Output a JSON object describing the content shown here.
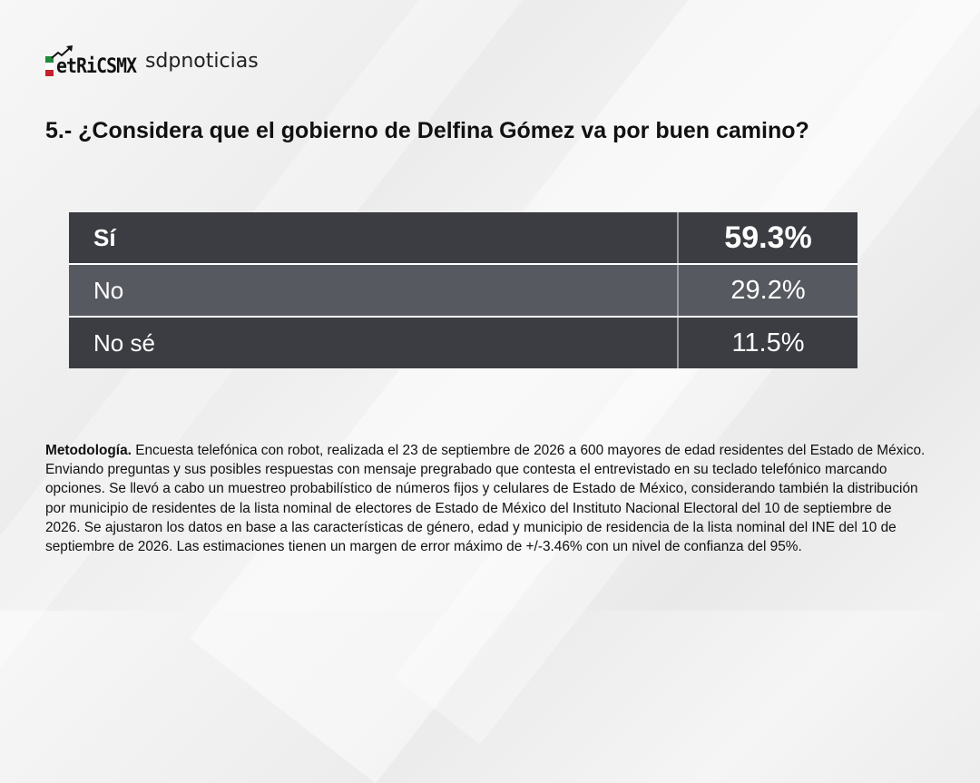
{
  "brand": {
    "logo_metrics": "MetricsMX",
    "logo_metrics_display": "etRiCSMX",
    "logo_partner": "sdpnoticias"
  },
  "question": "5.- ¿Considera que el gobierno de Delfina Gómez va por buen camino?",
  "chart_data": {
    "type": "table",
    "title": "5.- ¿Considera que el gobierno de Delfina Gómez va por buen camino?",
    "categories": [
      "Sí",
      "No",
      "No sé"
    ],
    "values": [
      59.3,
      29.2,
      11.5
    ],
    "unit": "%",
    "value_labels": [
      "59.3%",
      "29.2%",
      "11.5%"
    ],
    "rows": [
      {
        "label": "Sí",
        "value": "59.3%"
      },
      {
        "label": "No",
        "value": "29.2%"
      },
      {
        "label": "No sé",
        "value": "11.5%"
      }
    ]
  },
  "methodology": {
    "label": "Metodología.",
    "text": "Encuesta telefónica con robot, realizada el 23 de septiembre de 2026 a 600 mayores de edad residentes del Estado de México. Enviando preguntas y sus posibles respuestas con mensaje pregrabado que contesta el entrevistado en su teclado telefónico marcando opciones. Se llevó a cabo un muestreo probabilístico de números fijos y celulares de Estado de México, considerando también la distribución por municipio de residentes de la lista nominal de electores de Estado de México del Instituto Nacional Electoral del 10 de septiembre de 2026. Se ajustaron los datos en base a las características de género, edad y municipio de residencia de la lista nominal del INE del 10 de septiembre de 2026. Las estimaciones tienen un margen de error máximo de +/-3.46% con un nivel de confianza del 95%."
  },
  "colors": {
    "row_dark": "#3c3d42",
    "row_light": "#575961",
    "flag_green": "#1f8a3b",
    "flag_red": "#c8202b"
  }
}
